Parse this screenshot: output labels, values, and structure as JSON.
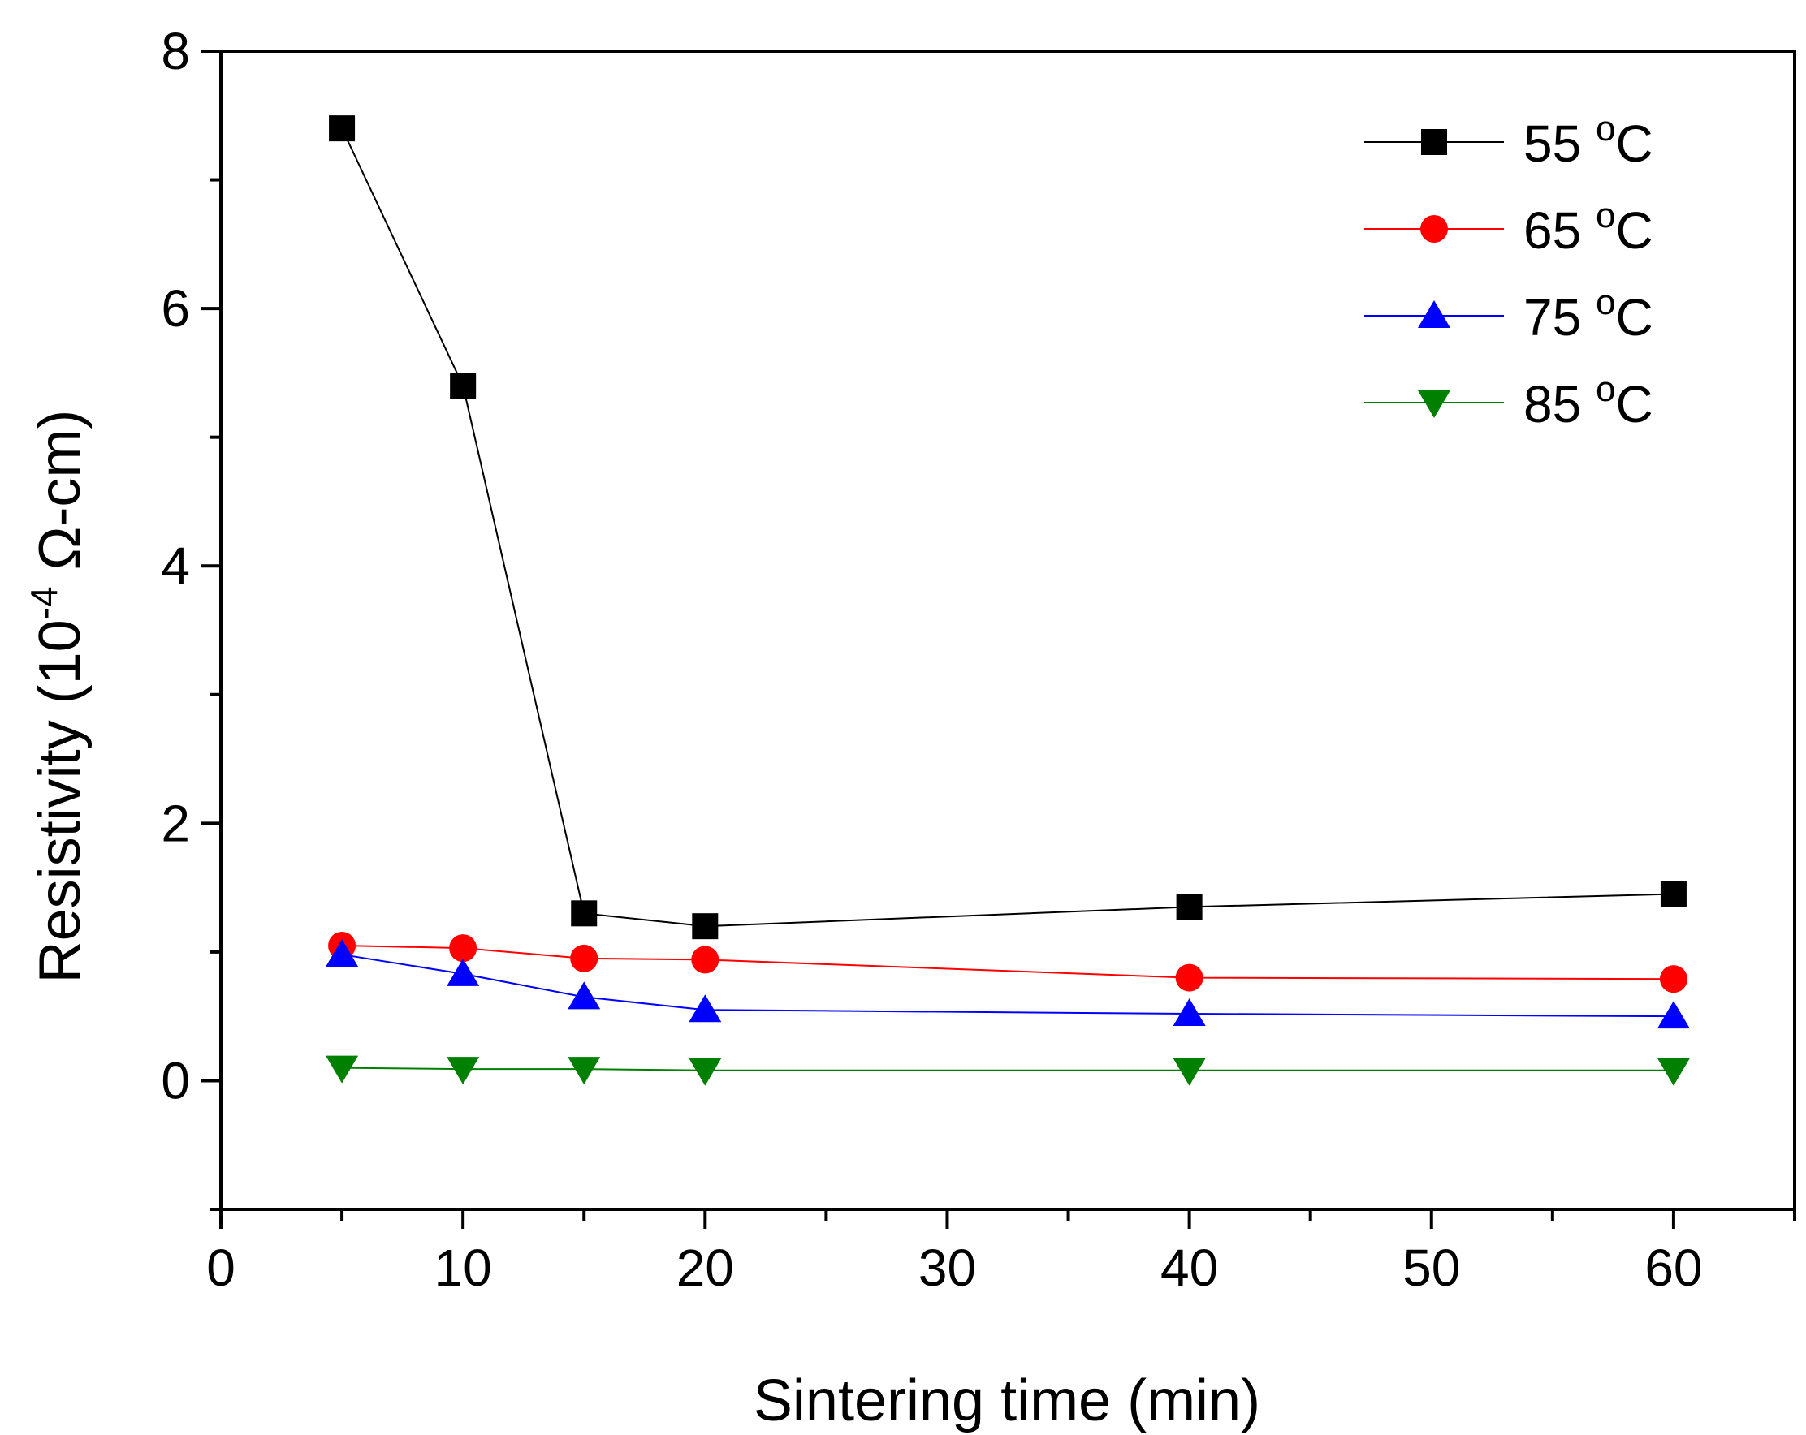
{
  "chart_data": {
    "type": "line",
    "xlabel": "Sintering time (min)",
    "ylabel": {
      "prefix": "Resistivity (10",
      "exponent": "-4",
      "suffix": " Ω-cm)"
    },
    "xlim": [
      0,
      65
    ],
    "ylim": [
      -1,
      8
    ],
    "xticks": [
      0,
      10,
      20,
      30,
      40,
      50,
      60
    ],
    "yticks": [
      0,
      2,
      4,
      6,
      8
    ],
    "legend_position": "top-right",
    "series": [
      {
        "name": "55 oC",
        "label_value": "55 ",
        "label_sup": "o",
        "label_unit": "C",
        "color": "#000000",
        "marker": "square",
        "x": [
          5,
          10,
          15,
          20,
          40,
          60
        ],
        "y": [
          7.4,
          5.4,
          1.3,
          1.2,
          1.35,
          1.45
        ]
      },
      {
        "name": "65 oC",
        "label_value": "65 ",
        "label_sup": "o",
        "label_unit": "C",
        "color": "#ff0000",
        "marker": "circle",
        "x": [
          5,
          10,
          15,
          20,
          40,
          60
        ],
        "y": [
          1.05,
          1.03,
          0.95,
          0.94,
          0.8,
          0.79
        ]
      },
      {
        "name": "75 oC",
        "label_value": "75 ",
        "label_sup": "o",
        "label_unit": "C",
        "color": "#0000ff",
        "marker": "triangle-up",
        "x": [
          5,
          10,
          15,
          20,
          40,
          60
        ],
        "y": [
          0.98,
          0.83,
          0.65,
          0.55,
          0.52,
          0.5
        ]
      },
      {
        "name": "85 oC",
        "label_value": "85 ",
        "label_sup": "o",
        "label_unit": "C",
        "color": "#008000",
        "marker": "triangle-down",
        "x": [
          5,
          10,
          15,
          20,
          40,
          60
        ],
        "y": [
          0.1,
          0.09,
          0.09,
          0.08,
          0.08,
          0.08
        ]
      }
    ]
  }
}
